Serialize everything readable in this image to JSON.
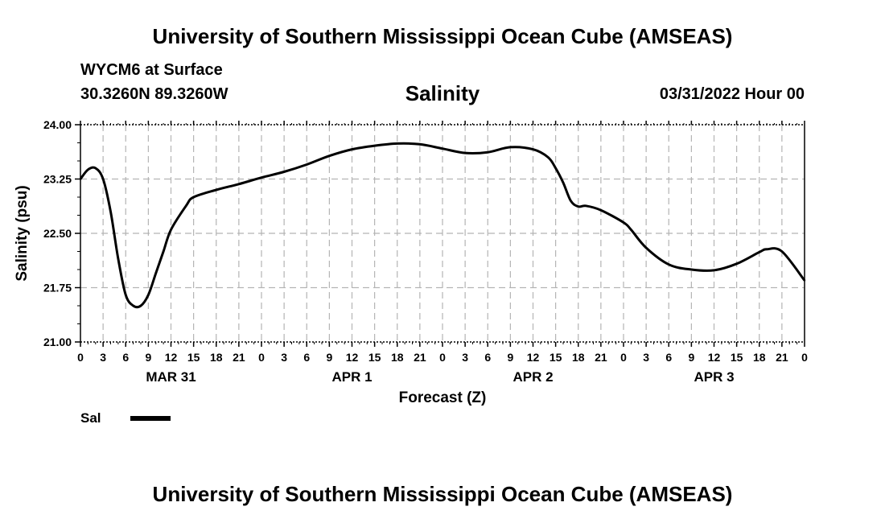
{
  "header": {
    "title": "University of Southern Mississippi Ocean Cube (AMSEAS)",
    "station": "WYCM6 at Surface",
    "coords": "30.3260N  89.3260W",
    "variable": "Salinity",
    "datetime": "03/31/2022 Hour 00"
  },
  "footer": {
    "title": "University of Southern Mississippi Ocean Cube (AMSEAS)"
  },
  "legend": {
    "label": "Sal",
    "color": "#000000"
  },
  "chart_data": {
    "type": "line",
    "title": "Salinity",
    "xlabel": "Forecast (Z)",
    "ylabel": "Salinity (psu)",
    "xlim": [
      0,
      96
    ],
    "ylim": [
      21.0,
      24.0
    ],
    "grid": true,
    "y_ticks": [
      21.0,
      21.75,
      22.5,
      23.25,
      24.0
    ],
    "y_tick_labels": [
      "21.00",
      "21.75",
      "22.50",
      "23.25",
      "24.00"
    ],
    "x_ticks": [
      0,
      3,
      6,
      9,
      12,
      15,
      18,
      21,
      24,
      27,
      30,
      33,
      36,
      39,
      42,
      45,
      48,
      51,
      54,
      57,
      60,
      63,
      66,
      69,
      72,
      75,
      78,
      81,
      84,
      87,
      90,
      93,
      96
    ],
    "x_tick_labels": [
      "0",
      "3",
      "6",
      "9",
      "12",
      "15",
      "18",
      "21",
      "0",
      "3",
      "6",
      "9",
      "12",
      "15",
      "18",
      "21",
      "0",
      "3",
      "6",
      "9",
      "12",
      "15",
      "18",
      "21",
      "0",
      "3",
      "6",
      "9",
      "12",
      "15",
      "18",
      "21",
      "0"
    ],
    "day_labels": [
      {
        "label": "MAR 31",
        "center_hour": 12
      },
      {
        "label": "APR 1",
        "center_hour": 36
      },
      {
        "label": "APR 2",
        "center_hour": 60
      },
      {
        "label": "APR 3",
        "center_hour": 84
      }
    ],
    "series": [
      {
        "name": "Sal",
        "x": [
          0,
          1,
          2,
          3,
          4,
          5,
          6,
          7,
          8,
          9,
          10,
          11,
          12,
          14,
          15,
          18,
          21,
          24,
          27,
          30,
          33,
          36,
          39,
          42,
          45,
          48,
          51,
          54,
          57,
          60,
          62,
          63,
          64,
          65,
          66,
          67,
          69,
          72,
          73,
          75,
          78,
          81,
          84,
          87,
          90,
          91,
          93,
          96
        ],
        "values": [
          23.25,
          23.38,
          23.4,
          23.25,
          22.8,
          22.15,
          21.65,
          21.5,
          21.5,
          21.65,
          21.95,
          22.25,
          22.55,
          22.88,
          23.0,
          23.1,
          23.18,
          23.27,
          23.35,
          23.45,
          23.57,
          23.66,
          23.71,
          23.74,
          23.73,
          23.67,
          23.61,
          23.62,
          23.69,
          23.66,
          23.55,
          23.4,
          23.2,
          22.95,
          22.87,
          22.88,
          22.82,
          22.65,
          22.55,
          22.3,
          22.07,
          22.0,
          21.99,
          22.08,
          22.24,
          22.28,
          22.25,
          21.85
        ]
      }
    ]
  }
}
